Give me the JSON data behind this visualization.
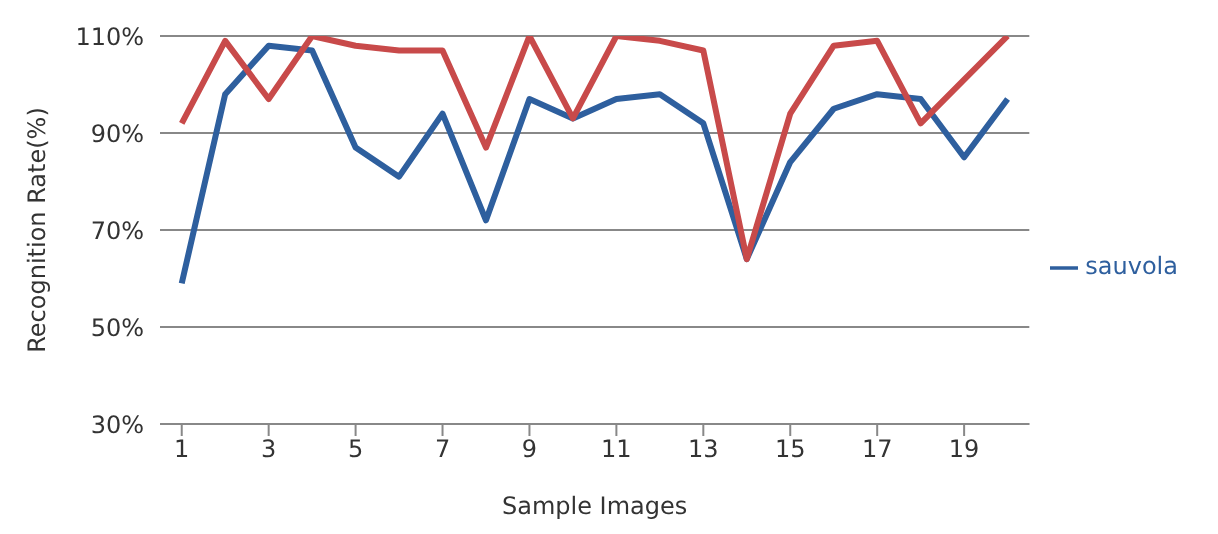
{
  "chart_data": {
    "type": "line",
    "xlabel": "Sample Images",
    "ylabel": "Recognition Rate(%)",
    "x": [
      1,
      2,
      3,
      4,
      5,
      6,
      7,
      8,
      9,
      10,
      11,
      12,
      13,
      14,
      15,
      16,
      17,
      18,
      19,
      20
    ],
    "xlim": [
      0.5,
      20.5
    ],
    "xticks": [
      1,
      3,
      5,
      7,
      9,
      11,
      13,
      15,
      17,
      19
    ],
    "series": [
      {
        "name": "sauvola",
        "color": "#2e5f9e",
        "values": [
          59,
          98,
          108,
          107,
          87,
          81,
          94,
          72,
          97,
          93,
          97,
          98,
          92,
          64,
          84,
          95,
          98,
          97,
          85,
          97
        ]
      },
      {
        "color": "#c84a4a",
        "values": [
          92,
          109,
          97,
          110,
          108,
          107,
          107,
          87,
          110,
          93,
          110,
          109,
          107,
          64,
          94,
          108,
          109,
          92,
          101,
          110
        ]
      }
    ],
    "ylim": [
      30,
      110
    ],
    "yticks": [
      {
        "value": 30,
        "label": "30%"
      },
      {
        "value": 50,
        "label": "50%"
      },
      {
        "value": 70,
        "label": "70%"
      },
      {
        "value": 90,
        "label": "90%"
      },
      {
        "value": 110,
        "label": "110%"
      }
    ],
    "grid": "y",
    "legend": "right",
    "marker": "none",
    "line_style": "solid"
  }
}
